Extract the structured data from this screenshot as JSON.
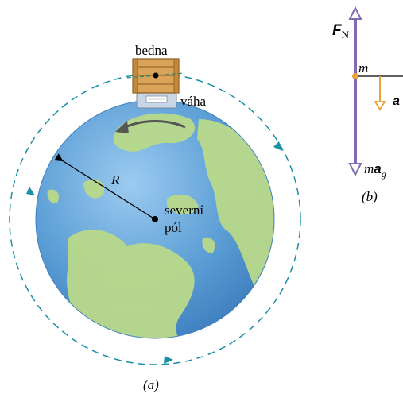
{
  "figure_a": {
    "crate_label": "bedna",
    "scale_label": "váha",
    "radius_label": "R",
    "pole_label_line1": "severní",
    "pole_label_line2": "pól",
    "caption": "(a)"
  },
  "figure_b": {
    "force_label": "F",
    "force_subscript": "N",
    "mass_label": "m",
    "accel_label": "a",
    "weight_m": "m",
    "weight_a": "a",
    "weight_sub": "g",
    "caption": "(b)"
  },
  "colors": {
    "orbit": "#1a8fa8",
    "earth_ocean": "#5d9fd6",
    "earth_land": "#b9d98a",
    "crate": "#d9a35a",
    "scale": "#c9d6e6",
    "force_arrow": "#7f6bb3",
    "accel_arrow": "#e8a33a"
  }
}
